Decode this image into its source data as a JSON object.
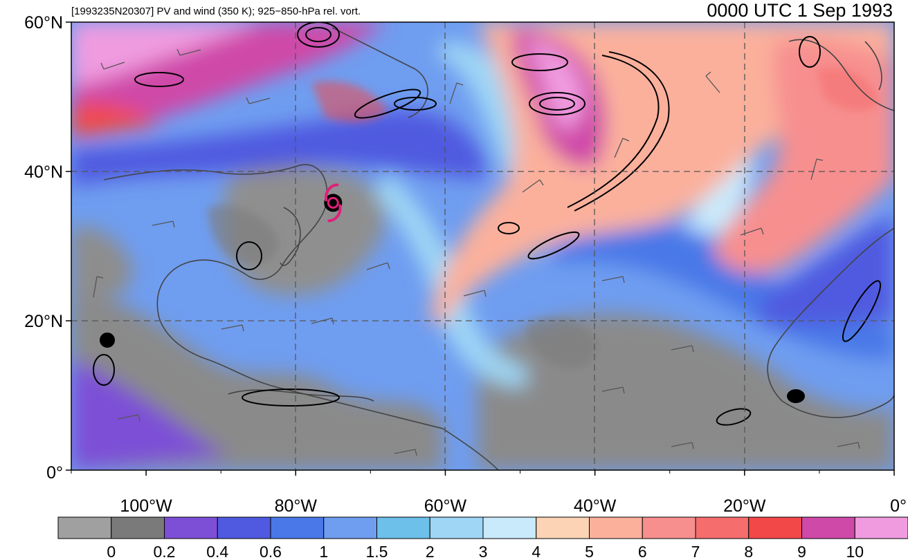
{
  "header": {
    "left_title": "[1993235N20307] PV and wind (350 K); 925−850-hPa rel. vort.",
    "right_title": "0000 UTC 1 Sep 1993"
  },
  "map": {
    "lon_range": [
      -110,
      0
    ],
    "lat_range": [
      0,
      60
    ],
    "lat_ticks": [
      {
        "value": 60,
        "label": "60°N"
      },
      {
        "value": 40,
        "label": "40°N"
      },
      {
        "value": 20,
        "label": "20°N"
      },
      {
        "value": 0,
        "label": "0°"
      }
    ],
    "lon_ticks": [
      {
        "value": -100,
        "label": "100°W"
      },
      {
        "value": -80,
        "label": "80°W"
      },
      {
        "value": -60,
        "label": "60°W"
      },
      {
        "value": -40,
        "label": "40°W"
      },
      {
        "value": -20,
        "label": "20°W"
      },
      {
        "value": 0,
        "label": "0°"
      }
    ],
    "gridlines": "dashed",
    "storm_symbol": {
      "type": "tropical-cyclone",
      "lon": -75,
      "lat": 35.8,
      "color": "#e0207a"
    }
  },
  "colorbar": {
    "colors": [
      "#a0a0a0",
      "#7a7a7a",
      "#7d4fd6",
      "#4f5ae0",
      "#4a78e8",
      "#6f9df0",
      "#6cc0ea",
      "#9fd6f5",
      "#c9eafb",
      "#fdd3b5",
      "#fbb09c",
      "#f78f8f",
      "#f56d6d",
      "#f24848",
      "#cf49a8",
      "#f09be0"
    ],
    "labels": [
      "0",
      "0.2",
      "0.4",
      "0.6",
      "1",
      "1.5",
      "2",
      "3",
      "4",
      "5",
      "6",
      "7",
      "8",
      "9",
      "10"
    ]
  }
}
